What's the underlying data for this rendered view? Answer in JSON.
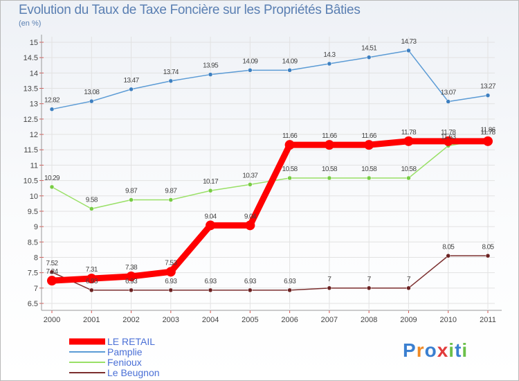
{
  "chart_data": {
    "type": "line",
    "title": "Evolution du Taux de Taxe Foncière sur les Propriétés Bâties",
    "unit_label": "(en %)",
    "categories": [
      "2000",
      "2001",
      "2002",
      "2003",
      "2004",
      "2005",
      "2006",
      "2007",
      "2008",
      "2009",
      "2010",
      "2011"
    ],
    "y_ticks": [
      "6.5",
      "7",
      "7.5",
      "8",
      "8.5",
      "9",
      "9.5",
      "10",
      "10.5",
      "11",
      "11.5",
      "12",
      "12.5",
      "13",
      "13.5",
      "14",
      "14.5",
      "15"
    ],
    "ylim": [
      6.5,
      15
    ],
    "series": [
      {
        "name": "LE RETAIL",
        "color": "#ff0000",
        "point_color": "#ff0000",
        "values": [
          7.24,
          7.31,
          7.38,
          7.53,
          9.04,
          9.04,
          11.66,
          11.66,
          11.66,
          11.78,
          11.78,
          11.78
        ],
        "labels": [
          "7.24",
          "7.31",
          "7.38",
          "7.53",
          "9.04",
          "9.04",
          "11.66",
          "11.66",
          "11.66",
          "11.78",
          "11.78",
          "11.78"
        ]
      },
      {
        "name": "Pamplie",
        "color": "#5b9bd5",
        "point_color": "#3d7fc0",
        "values": [
          12.82,
          13.08,
          13.47,
          13.74,
          13.95,
          14.09,
          14.09,
          14.3,
          14.51,
          14.73,
          13.07,
          13.27
        ],
        "labels": [
          "12.82",
          "13.08",
          "13.47",
          "13.74",
          "13.95",
          "14.09",
          "14.09",
          "14.3",
          "14.51",
          "14.73",
          "13.07",
          "13.27"
        ]
      },
      {
        "name": "Fenioux",
        "color": "#99e066",
        "point_color": "#77cc44",
        "values": [
          10.29,
          9.58,
          9.87,
          9.87,
          10.17,
          10.37,
          10.58,
          10.58,
          10.58,
          10.58,
          11.63,
          11.86
        ],
        "labels": [
          "10.29",
          "9.58",
          "9.87",
          "9.87",
          "10.17",
          "10.37",
          "10.58",
          "10.58",
          "10.58",
          "10.58",
          "11.63",
          "11.86"
        ]
      },
      {
        "name": "Le Beugnon",
        "color": "#7b2e2e",
        "point_color": "#6b2222",
        "values": [
          7.52,
          6.93,
          6.93,
          6.93,
          6.93,
          6.93,
          6.93,
          7,
          7,
          7,
          8.05,
          8.05
        ],
        "labels": [
          "7.52",
          "6.93",
          "6.93",
          "6.93",
          "6.93",
          "6.93",
          "6.93",
          "7",
          "7",
          "7",
          "8.05",
          "8.05"
        ]
      }
    ],
    "legend_position": "bottom-left",
    "grid": true
  },
  "logo": {
    "text": "Proxiti",
    "letters": [
      "P",
      "r",
      "o",
      "x",
      "i",
      "t",
      "i"
    ]
  }
}
